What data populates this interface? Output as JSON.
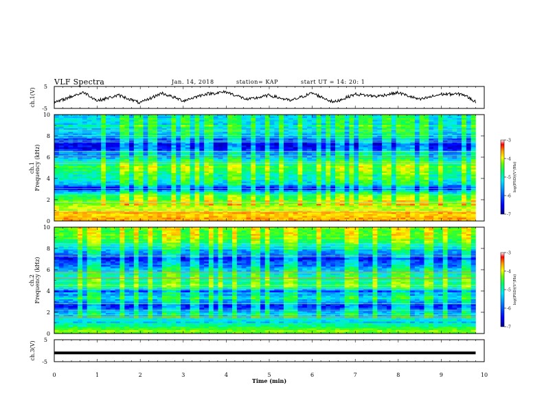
{
  "header": {
    "title": "VLF Spectra",
    "date": "Jan. 14, 2018",
    "station": "station= KAP",
    "start": "start UT =  14: 20: 1"
  },
  "colors": {
    "trace": "#000000",
    "background": "#ffffff",
    "colormap": [
      "#00008c",
      "#0000ff",
      "#0078ff",
      "#00e6ff",
      "#00ff64",
      "#64ff00",
      "#ffff00",
      "#ffa000",
      "#ff0000",
      "#ffffff"
    ]
  },
  "chart_data": [
    {
      "type": "line",
      "panel": "ch1-waveform",
      "ylabel": "ch.1(V)",
      "ylim": [
        -5,
        5
      ],
      "yticks": [
        "5",
        "-5"
      ],
      "x": [
        0,
        0.5,
        0.7,
        1.0,
        1.5,
        2.0,
        2.5,
        3.0,
        3.5,
        4.0,
        4.5,
        5.0,
        5.5,
        6.0,
        6.5,
        7.0,
        7.5,
        8.0,
        8.5,
        9.0,
        9.5,
        9.8
      ],
      "values": [
        -2.5,
        1.2,
        2.3,
        -1.5,
        1.0,
        -2.5,
        2.0,
        -1.5,
        1.5,
        2.5,
        -1.0,
        1.0,
        -1.5,
        2.0,
        -2.2,
        1.5,
        0.5,
        2.2,
        -1.0,
        1.5,
        1.5,
        -2.0
      ]
    },
    {
      "type": "heatmap",
      "panel": "ch1-spectrogram",
      "ylabel": "ch.1",
      "ylabel2": "Frequency (kHz)",
      "ylim": [
        0,
        10
      ],
      "yticks": [
        "0",
        "2",
        "4",
        "6",
        "8",
        "10"
      ],
      "colorbar": {
        "label": "log(PSD)(V²/Hz)",
        "range": [
          -7,
          -3
        ],
        "ticks": [
          "-3",
          "-4",
          "-5",
          "-6",
          "-7"
        ]
      },
      "band_profile": [
        {
          "f": 0.4,
          "level": 0.75
        },
        {
          "f": 0.8,
          "level": 0.7
        },
        {
          "f": 1.2,
          "level": 0.65
        },
        {
          "f": 1.6,
          "level": 0.55
        },
        {
          "f": 2.0,
          "level": 0.5
        },
        {
          "f": 2.4,
          "level": 0.45
        },
        {
          "f": 3.0,
          "level": 0.12
        },
        {
          "f": 3.5,
          "level": 0.3
        },
        {
          "f": 4.0,
          "level": 0.35
        },
        {
          "f": 4.5,
          "level": 0.4
        },
        {
          "f": 5.0,
          "level": 0.5
        },
        {
          "f": 5.5,
          "level": 0.4
        },
        {
          "f": 6.0,
          "level": 0.3
        },
        {
          "f": 7.0,
          "level": 0.08
        },
        {
          "f": 8.0,
          "level": 0.25
        },
        {
          "f": 9.0,
          "level": 0.35
        },
        {
          "f": 10.0,
          "level": 0.3
        }
      ]
    },
    {
      "type": "heatmap",
      "panel": "ch2-spectrogram",
      "ylabel": "ch.2",
      "ylabel2": "Frequency (kHz)",
      "ylim": [
        0,
        10
      ],
      "yticks": [
        "0",
        "2",
        "4",
        "6",
        "8",
        "10"
      ],
      "colorbar": {
        "label": "log(PSD)(V²/Hz)",
        "range": [
          -7,
          -3
        ],
        "ticks": [
          "-3",
          "-4",
          "-5",
          "-6",
          "-7"
        ]
      },
      "band_profile": [
        {
          "f": 0.4,
          "level": 0.55
        },
        {
          "f": 1.0,
          "level": 0.35
        },
        {
          "f": 2.0,
          "level": 0.3
        },
        {
          "f": 2.7,
          "level": 0.12
        },
        {
          "f": 3.3,
          "level": 0.35
        },
        {
          "f": 4.0,
          "level": 0.2
        },
        {
          "f": 4.5,
          "level": 0.45
        },
        {
          "f": 5.0,
          "level": 0.4
        },
        {
          "f": 6.0,
          "level": 0.3
        },
        {
          "f": 7.0,
          "level": 0.1
        },
        {
          "f": 8.0,
          "level": 0.35
        },
        {
          "f": 9.0,
          "level": 0.5
        },
        {
          "f": 10.0,
          "level": 0.55
        }
      ]
    },
    {
      "type": "line",
      "panel": "ch3-waveform",
      "ylabel": "ch.3(V)",
      "ylim": [
        -5,
        5
      ],
      "yticks": [
        "5",
        "-5"
      ],
      "x": [
        0,
        9.8
      ],
      "values": [
        -1.0,
        -1.0
      ],
      "xlabel": "Time (min)",
      "xlim": [
        0,
        10
      ],
      "xticks": [
        "0",
        "1",
        "2",
        "3",
        "4",
        "5",
        "6",
        "7",
        "8",
        "9",
        "10"
      ]
    }
  ]
}
